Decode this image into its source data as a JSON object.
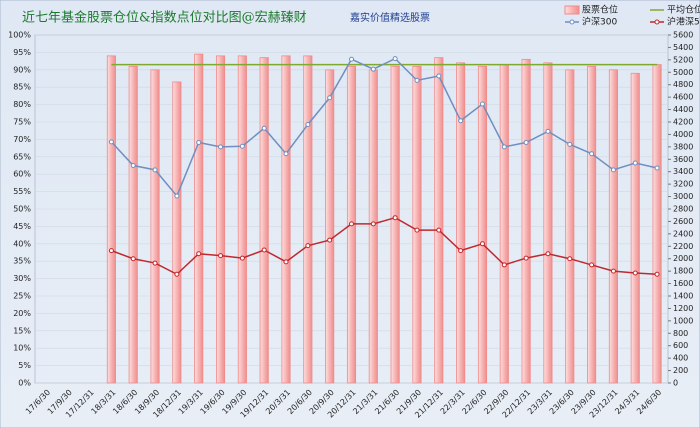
{
  "chart_data": {
    "type": "bar",
    "title": "近七年基金股票仓位&指数点位对比图@宏赫臻财",
    "subtitle": "嘉实价值精选股票",
    "categories": [
      "17/6/30",
      "17/9/30",
      "17/12/31",
      "18/3/31",
      "18/6/30",
      "18/9/30",
      "18/12/31",
      "19/3/31",
      "19/6/30",
      "19/9/30",
      "19/12/31",
      "20/3/31",
      "20/6/30",
      "20/9/30",
      "20/12/31",
      "21/3/31",
      "21/6/30",
      "21/9/30",
      "21/12/31",
      "22/3/31",
      "22/6/30",
      "22/9/30",
      "22/12/31",
      "23/3/31",
      "23/6/30",
      "23/9/30",
      "23/12/31",
      "24/3/31",
      "24/6/30"
    ],
    "series": [
      {
        "name": "股票仓位",
        "type": "bar",
        "color": "#f08a8a",
        "values": [
          null,
          null,
          null,
          94,
          91,
          90,
          86.5,
          94.5,
          94,
          94,
          93.5,
          94,
          94,
          90,
          91,
          90,
          91,
          91,
          93.5,
          92,
          91,
          91.5,
          93,
          92,
          90,
          91,
          90,
          89,
          91.5
        ]
      },
      {
        "name": "平均仓位",
        "type": "line",
        "color": "#7faa2e",
        "marker": false,
        "values": [
          null,
          null,
          null,
          91.5,
          91.5,
          91.5,
          91.5,
          91.5,
          91.5,
          91.5,
          91.5,
          91.5,
          91.5,
          91.5,
          91.5,
          91.5,
          91.5,
          91.5,
          91.5,
          91.5,
          91.5,
          91.5,
          91.5,
          91.5,
          91.5,
          91.5,
          91.5,
          91.5,
          91.5
        ]
      },
      {
        "name": "沪深300",
        "type": "line",
        "axis": "y2",
        "color": "#6f8fc0",
        "marker": true,
        "values": [
          null,
          null,
          null,
          3880,
          3500,
          3430,
          3010,
          3870,
          3800,
          3810,
          4100,
          3690,
          4160,
          4590,
          5210,
          5050,
          5220,
          4870,
          4940,
          4220,
          4490,
          3800,
          3870,
          4050,
          3840,
          3690,
          3430,
          3540,
          3460
        ]
      },
      {
        "name": "沪港深500",
        "type": "line",
        "axis": "y2",
        "color": "#c0282e",
        "marker": true,
        "values": [
          null,
          null,
          null,
          2130,
          2000,
          1930,
          1750,
          2080,
          2050,
          2010,
          2140,
          1950,
          2210,
          2300,
          2560,
          2560,
          2660,
          2460,
          2460,
          2130,
          2240,
          1900,
          2010,
          2080,
          2000,
          1900,
          1800,
          1770,
          1750
        ]
      }
    ],
    "ylim": [
      0,
      100
    ],
    "yticks": [
      {
        "value": 0,
        "label": "0%"
      },
      {
        "value": 5,
        "label": "5%"
      },
      {
        "value": 10,
        "label": "10%"
      },
      {
        "value": 15,
        "label": "15%"
      },
      {
        "value": 20,
        "label": "20%"
      },
      {
        "value": 25,
        "label": "25%"
      },
      {
        "value": 30,
        "label": "30%"
      },
      {
        "value": 35,
        "label": "35%"
      },
      {
        "value": 40,
        "label": "40%"
      },
      {
        "value": 45,
        "label": "45%"
      },
      {
        "value": 50,
        "label": "50%"
      },
      {
        "value": 55,
        "label": "55%"
      },
      {
        "value": 60,
        "label": "60%"
      },
      {
        "value": 65,
        "label": "65%"
      },
      {
        "value": 70,
        "label": "70%"
      },
      {
        "value": 75,
        "label": "75%"
      },
      {
        "value": 80,
        "label": "80%"
      },
      {
        "value": 85,
        "label": "85%"
      },
      {
        "value": 90,
        "label": "90%"
      },
      {
        "value": 95,
        "label": "95%"
      },
      {
        "value": 100,
        "label": "100%"
      }
    ],
    "y2lim": [
      0,
      5600
    ],
    "y2ticks": [
      0,
      200,
      400,
      600,
      800,
      1000,
      1200,
      1400,
      1600,
      1800,
      2000,
      2200,
      2400,
      2600,
      2800,
      3000,
      3200,
      3400,
      3600,
      3800,
      4000,
      4200,
      4400,
      4600,
      4800,
      5000,
      5200,
      5400,
      5600
    ],
    "legend": "top-right"
  }
}
